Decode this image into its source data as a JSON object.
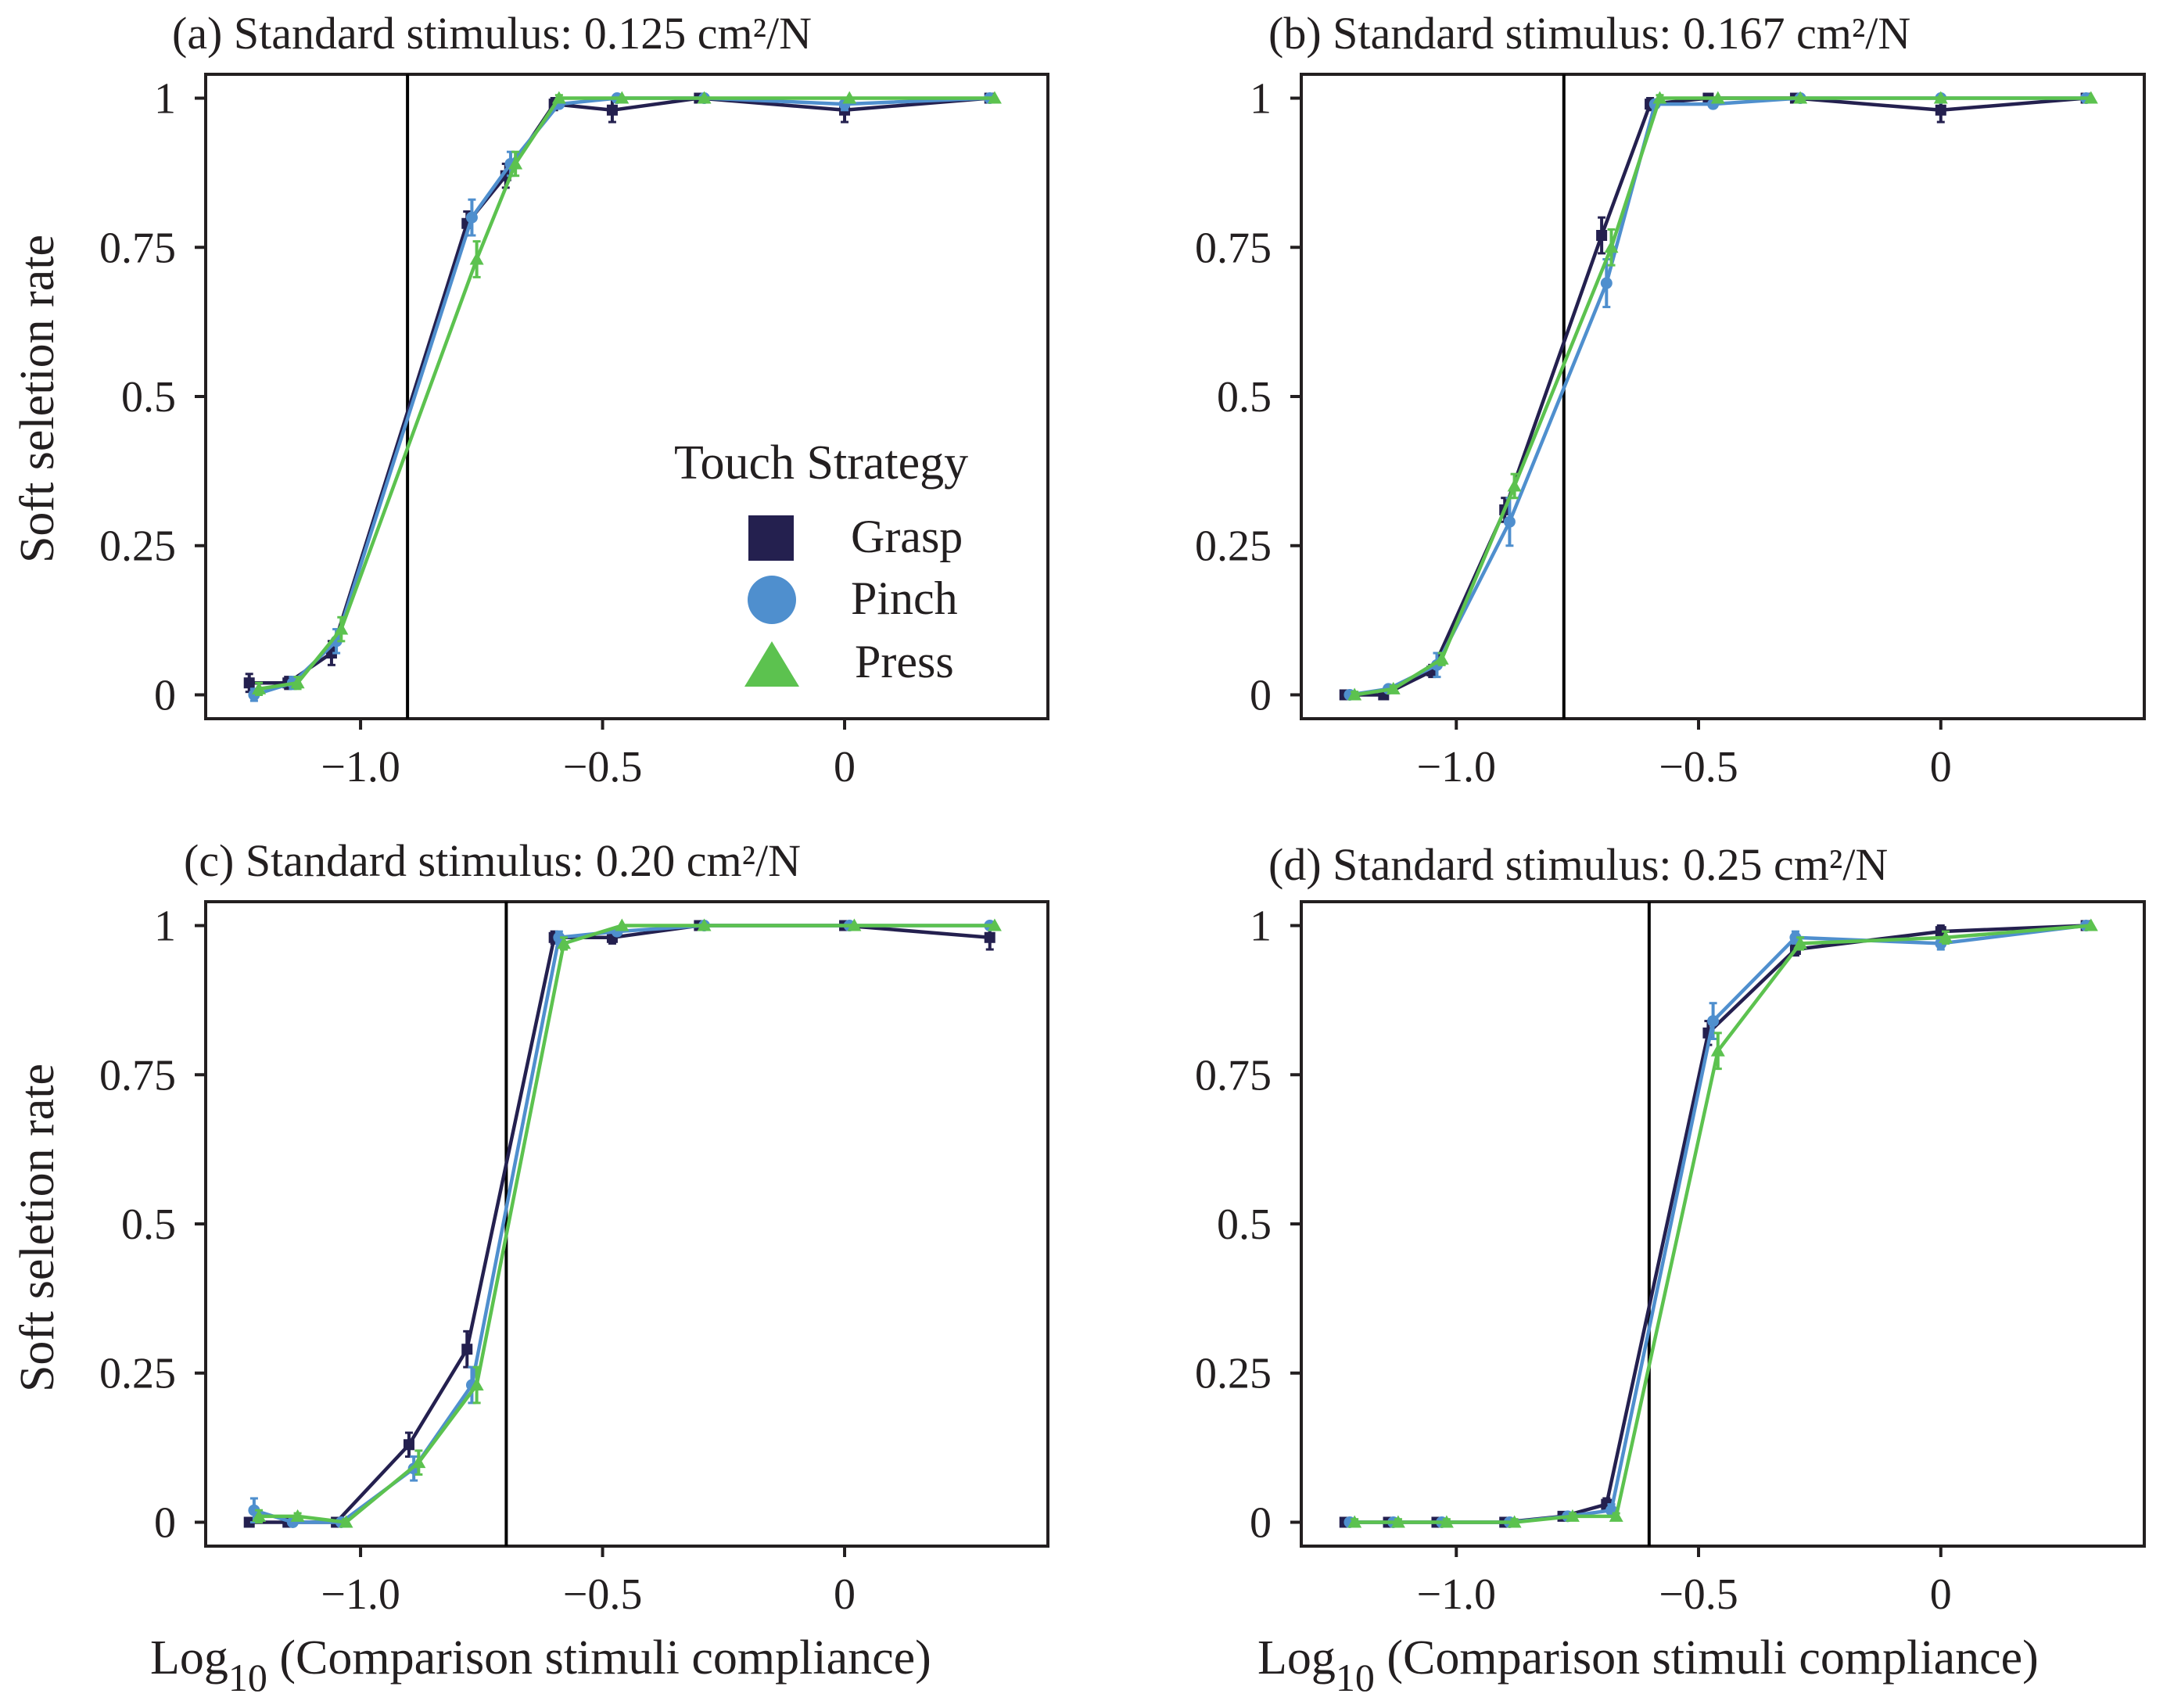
{
  "x_axis_label": "Log",
  "x_axis_label_sub": "10",
  "x_axis_label_rest": " (Comparison stimuli compliance)",
  "y_axis_label": "Soft seletion rate",
  "legend": {
    "title": "Touch Strategy",
    "items": [
      {
        "name": "Grasp",
        "marker": "square",
        "color": "#24204f"
      },
      {
        "name": "Pinch",
        "marker": "circle",
        "color": "#4f8fce"
      },
      {
        "name": "Press",
        "marker": "triangle",
        "color": "#5cc24f"
      }
    ]
  },
  "chart_data": [
    {
      "type": "line",
      "title": "(a) Standard stimulus: 0.125 cm²/N",
      "xlim": [
        -1.32,
        0.42
      ],
      "ylim": [
        -0.04,
        1.04
      ],
      "xticks": [
        {
          "v": -1.0,
          "label": "−1.0"
        },
        {
          "v": -0.5,
          "label": "−0.5"
        },
        {
          "v": 0,
          "label": "0"
        }
      ],
      "yticks": [
        {
          "v": 0,
          "label": "0"
        },
        {
          "v": 0.25,
          "label": "0.25"
        },
        {
          "v": 0.5,
          "label": "0.5"
        },
        {
          "v": 0.75,
          "label": "0.75"
        },
        {
          "v": 1,
          "label": "1"
        }
      ],
      "vline": -0.903,
      "series": [
        {
          "name": "Grasp",
          "x": [
            -1.23,
            -1.15,
            -1.06,
            -0.78,
            -0.7,
            -0.6,
            -0.48,
            -0.3,
            0.0,
            0.3
          ],
          "y": [
            0.02,
            0.02,
            0.07,
            0.79,
            0.87,
            0.99,
            0.98,
            1.0,
            0.98,
            1.0
          ],
          "err": [
            0.015,
            0.01,
            0.02,
            0.02,
            0.02,
            0.01,
            0.02,
            0.0,
            0.02,
            0.0
          ]
        },
        {
          "name": "Pinch",
          "x": [
            -1.22,
            -1.14,
            -1.05,
            -0.77,
            -0.69,
            -0.59,
            -0.47,
            -0.29,
            0.0,
            0.3
          ],
          "y": [
            0.0,
            0.02,
            0.09,
            0.8,
            0.89,
            0.99,
            1.0,
            1.0,
            0.99,
            1.0
          ],
          "err": [
            0.01,
            0.01,
            0.02,
            0.03,
            0.02,
            0.005,
            0.005,
            0.0,
            0.01,
            0.0
          ]
        },
        {
          "name": "Press",
          "x": [
            -1.21,
            -1.13,
            -1.04,
            -0.76,
            -0.68,
            -0.59,
            -0.46,
            -0.29,
            0.01,
            0.31
          ],
          "y": [
            0.01,
            0.02,
            0.11,
            0.73,
            0.89,
            1.0,
            1.0,
            1.0,
            1.0,
            1.0
          ],
          "err": [
            0.01,
            0.01,
            0.02,
            0.03,
            0.02,
            0.005,
            0.0,
            0.0,
            0.0,
            0.0
          ]
        }
      ]
    },
    {
      "type": "line",
      "title": "(b) Standard stimulus: 0.167 cm²/N",
      "xlim": [
        -1.32,
        0.42
      ],
      "ylim": [
        -0.04,
        1.04
      ],
      "xticks": [
        {
          "v": -1.0,
          "label": "−1.0"
        },
        {
          "v": -0.5,
          "label": "−0.5"
        },
        {
          "v": 0,
          "label": "0"
        }
      ],
      "yticks": [
        {
          "v": 0,
          "label": "0"
        },
        {
          "v": 0.25,
          "label": "0.25"
        },
        {
          "v": 0.5,
          "label": "0.5"
        },
        {
          "v": 0.75,
          "label": "0.75"
        },
        {
          "v": 1,
          "label": "1"
        }
      ],
      "vline": -0.778,
      "series": [
        {
          "name": "Grasp",
          "x": [
            -1.23,
            -1.15,
            -1.05,
            -0.9,
            -0.7,
            -0.6,
            -0.48,
            -0.3,
            0.0,
            0.3
          ],
          "y": [
            0.0,
            0.0,
            0.04,
            0.31,
            0.77,
            0.99,
            1.0,
            1.0,
            0.98,
            1.0
          ],
          "err": [
            0.005,
            0.005,
            0.01,
            0.02,
            0.03,
            0.01,
            0.005,
            0.0,
            0.02,
            0.0
          ]
        },
        {
          "name": "Pinch",
          "x": [
            -1.22,
            -1.14,
            -1.04,
            -0.89,
            -0.69,
            -0.59,
            -0.47,
            -0.29,
            0.0,
            0.3
          ],
          "y": [
            0.0,
            0.01,
            0.05,
            0.29,
            0.69,
            0.99,
            0.99,
            1.0,
            1.0,
            1.0
          ],
          "err": [
            0.005,
            0.005,
            0.02,
            0.04,
            0.04,
            0.005,
            0.005,
            0.0,
            0.0,
            0.0
          ]
        },
        {
          "name": "Press",
          "x": [
            -1.21,
            -1.13,
            -1.03,
            -0.88,
            -0.68,
            -0.58,
            -0.46,
            -0.29,
            0.0,
            0.31
          ],
          "y": [
            0.0,
            0.01,
            0.06,
            0.35,
            0.75,
            1.0,
            1.0,
            1.0,
            1.0,
            1.0
          ],
          "err": [
            0.005,
            0.005,
            0.01,
            0.02,
            0.03,
            0.005,
            0.0,
            0.0,
            0.0,
            0.0
          ]
        }
      ]
    },
    {
      "type": "line",
      "title": "(c) Standard stimulus: 0.20 cm²/N",
      "xlim": [
        -1.32,
        0.42
      ],
      "ylim": [
        -0.04,
        1.04
      ],
      "xticks": [
        {
          "v": -1.0,
          "label": "−1.0"
        },
        {
          "v": -0.5,
          "label": "−0.5"
        },
        {
          "v": 0,
          "label": "0"
        }
      ],
      "yticks": [
        {
          "v": 0,
          "label": "0"
        },
        {
          "v": 0.25,
          "label": "0.25"
        },
        {
          "v": 0.5,
          "label": "0.5"
        },
        {
          "v": 0.75,
          "label": "0.75"
        },
        {
          "v": 1,
          "label": "1"
        }
      ],
      "vline": -0.699,
      "series": [
        {
          "name": "Grasp",
          "x": [
            -1.23,
            -1.15,
            -1.05,
            -0.9,
            -0.78,
            -0.6,
            -0.48,
            -0.3,
            0.0,
            0.3
          ],
          "y": [
            0.0,
            0.0,
            0.0,
            0.13,
            0.29,
            0.98,
            0.98,
            1.0,
            1.0,
            0.98
          ],
          "err": [
            0.005,
            0.005,
            0.005,
            0.02,
            0.03,
            0.01,
            0.01,
            0.0,
            0.005,
            0.02
          ]
        },
        {
          "name": "Pinch",
          "x": [
            -1.22,
            -1.14,
            -1.04,
            -0.89,
            -0.77,
            -0.59,
            -0.47,
            -0.29,
            0.01,
            0.3
          ],
          "y": [
            0.02,
            0.0,
            0.0,
            0.09,
            0.23,
            0.98,
            0.99,
            1.0,
            1.0,
            1.0
          ],
          "err": [
            0.02,
            0.005,
            0.005,
            0.02,
            0.03,
            0.01,
            0.005,
            0.0,
            0.0,
            0.0
          ]
        },
        {
          "name": "Press",
          "x": [
            -1.21,
            -1.13,
            -1.03,
            -0.88,
            -0.76,
            -0.58,
            -0.46,
            -0.29,
            0.02,
            0.31
          ],
          "y": [
            0.01,
            0.01,
            0.0,
            0.1,
            0.23,
            0.97,
            1.0,
            1.0,
            1.0,
            1.0
          ],
          "err": [
            0.01,
            0.005,
            0.005,
            0.02,
            0.03,
            0.01,
            0.0,
            0.0,
            0.0,
            0.0
          ]
        }
      ]
    },
    {
      "type": "line",
      "title": "(d) Standard stimulus: 0.25 cm²/N",
      "xlim": [
        -1.32,
        0.42
      ],
      "ylim": [
        -0.04,
        1.04
      ],
      "xticks": [
        {
          "v": -1.0,
          "label": "−1.0"
        },
        {
          "v": -0.5,
          "label": "−0.5"
        },
        {
          "v": 0,
          "label": "0"
        }
      ],
      "yticks": [
        {
          "v": 0,
          "label": "0"
        },
        {
          "v": 0.25,
          "label": "0.25"
        },
        {
          "v": 0.5,
          "label": "0.5"
        },
        {
          "v": 0.75,
          "label": "0.75"
        },
        {
          "v": 1,
          "label": "1"
        }
      ],
      "vline": -0.602,
      "series": [
        {
          "name": "Grasp",
          "x": [
            -1.23,
            -1.14,
            -1.04,
            -0.9,
            -0.78,
            -0.69,
            -0.48,
            -0.3,
            0.0,
            0.3
          ],
          "y": [
            0.0,
            0.0,
            0.0,
            0.0,
            0.01,
            0.03,
            0.82,
            0.96,
            0.99,
            1.0
          ],
          "err": [
            0.005,
            0.005,
            0.005,
            0.005,
            0.005,
            0.01,
            0.02,
            0.01,
            0.01,
            0.0
          ]
        },
        {
          "name": "Pinch",
          "x": [
            -1.22,
            -1.13,
            -1.03,
            -0.89,
            -0.77,
            -0.68,
            -0.47,
            -0.3,
            0.0,
            0.3
          ],
          "y": [
            0.0,
            0.0,
            0.0,
            0.0,
            0.01,
            0.02,
            0.84,
            0.98,
            0.97,
            1.0
          ],
          "err": [
            0.005,
            0.005,
            0.005,
            0.005,
            0.005,
            0.01,
            0.03,
            0.01,
            0.01,
            0.0
          ]
        },
        {
          "name": "Press",
          "x": [
            -1.21,
            -1.12,
            -1.02,
            -0.88,
            -0.76,
            -0.67,
            -0.46,
            -0.29,
            0.01,
            0.31
          ],
          "y": [
            0.0,
            0.0,
            0.0,
            0.0,
            0.01,
            0.01,
            0.79,
            0.97,
            0.98,
            1.0
          ],
          "err": [
            0.005,
            0.005,
            0.005,
            0.005,
            0.005,
            0.005,
            0.03,
            0.01,
            0.01,
            0.0
          ]
        }
      ]
    }
  ]
}
